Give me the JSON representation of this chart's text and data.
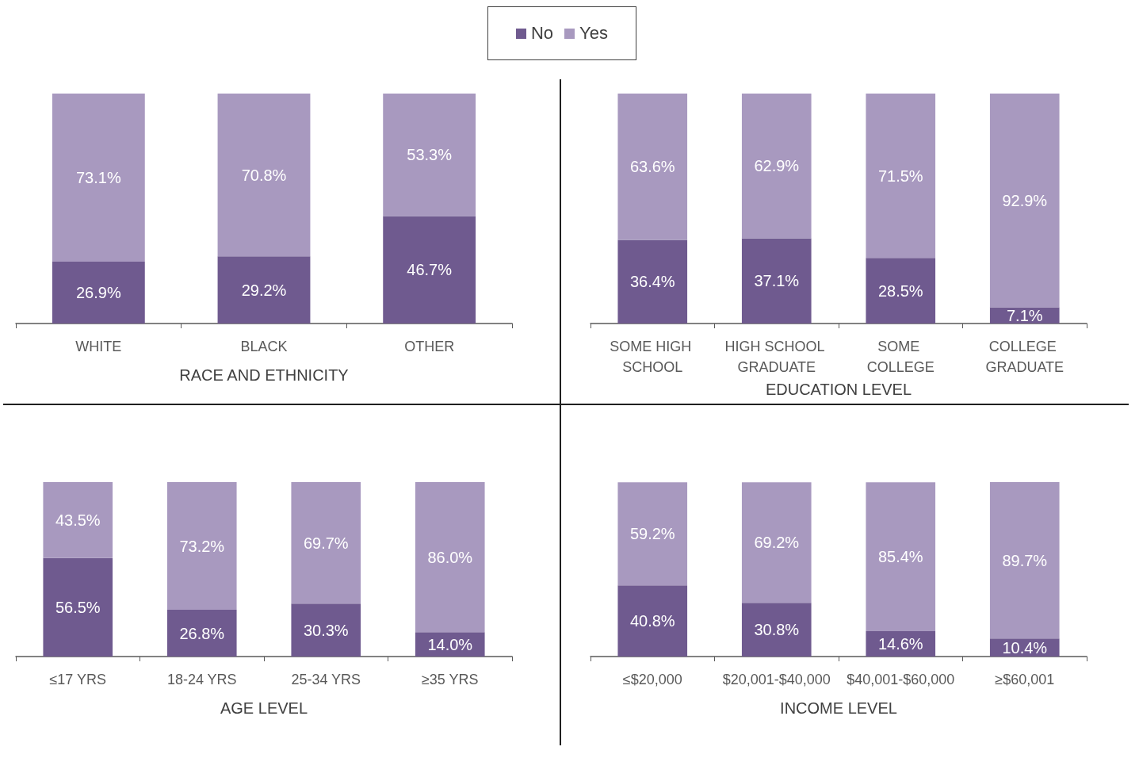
{
  "chart_data": [
    {
      "type": "bar",
      "stacked": true,
      "legend": "top",
      "xlabel": "RACE AND ETHNICITY",
      "categories": [
        "WHITE",
        "BLACK",
        "OTHER"
      ],
      "series": [
        {
          "name": "No",
          "color": "#6f5a8f",
          "values": [
            26.9,
            29.2,
            46.7
          ],
          "value_labels": [
            "26.9%",
            "29.2%",
            "46.7%"
          ]
        },
        {
          "name": "Yes",
          "color": "#a899bf",
          "values": [
            73.1,
            70.8,
            53.3
          ],
          "value_labels": [
            "73.1%",
            "70.8%",
            "53.3%"
          ]
        }
      ]
    },
    {
      "type": "bar",
      "stacked": true,
      "xlabel": "EDUCATION LEVEL",
      "categories": [
        "SOME HIGH SCHOOL",
        "HIGH SCHOOL GRADUATE",
        "SOME COLLEGE",
        "COLLEGE GRADUATE"
      ],
      "series": [
        {
          "color": "#6f5a8f",
          "values": [
            36.4,
            37.1,
            28.5,
            7.1
          ],
          "value_labels": [
            "36.4%",
            "37.1%",
            "28.5%",
            "7.1%"
          ]
        },
        {
          "color": "#a899bf",
          "values": [
            63.6,
            62.9,
            71.5,
            92.9
          ],
          "value_labels": [
            "63.6%",
            "62.9%",
            "71.5%",
            "92.9%"
          ]
        }
      ]
    },
    {
      "type": "bar",
      "stacked": true,
      "xlabel": "AGE LEVEL",
      "categories": [
        "≤17 YRS",
        "18-24 YRS",
        "25-34 YRS",
        "≥35 YRS"
      ],
      "series": [
        {
          "color": "#6f5a8f",
          "values": [
            56.5,
            26.8,
            30.3,
            14.0
          ],
          "value_labels": [
            "56.5%",
            "26.8%",
            "30.3%",
            "14.0%"
          ]
        },
        {
          "color": "#a899bf",
          "values": [
            43.5,
            73.2,
            69.7,
            86.0
          ],
          "value_labels": [
            "43.5%",
            "73.2%",
            "69.7%",
            "86.0%"
          ]
        }
      ]
    },
    {
      "type": "bar",
      "stacked": true,
      "xlabel": "INCOME LEVEL",
      "categories": [
        "≤$20,000",
        "$20,001-$40,000",
        "$40,001-$60,000",
        "≥$60,001"
      ],
      "series": [
        {
          "color": "#6f5a8f",
          "values": [
            40.8,
            30.8,
            14.6,
            10.4
          ],
          "value_labels": [
            "40.8%",
            "30.8%",
            "14.6%",
            "10.4%"
          ]
        },
        {
          "color": "#a899bf",
          "values": [
            59.2,
            69.2,
            85.4,
            89.7
          ],
          "value_labels": [
            "59.2%",
            "69.2%",
            "85.4%",
            "89.7%"
          ]
        }
      ]
    }
  ]
}
